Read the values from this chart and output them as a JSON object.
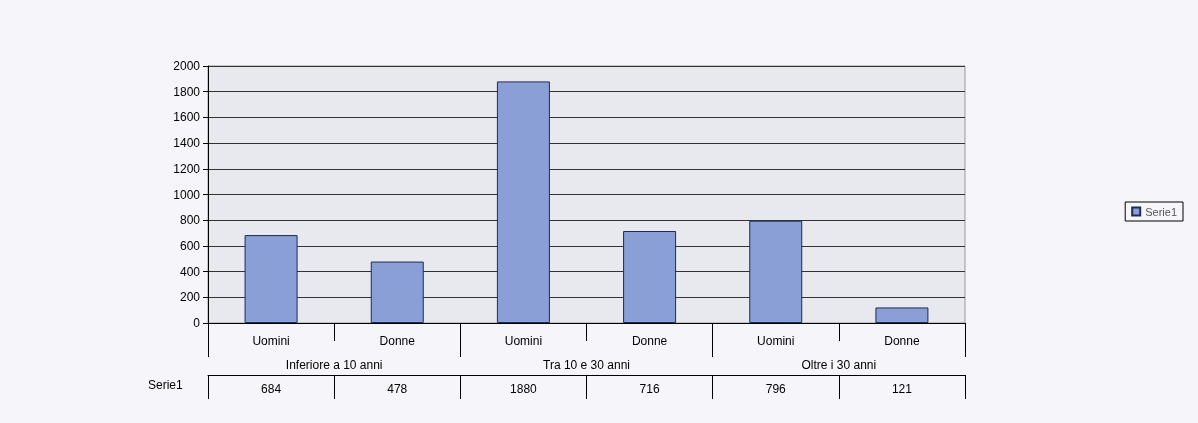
{
  "chart_data": {
    "type": "bar",
    "categories": [
      "Uomini",
      "Donne",
      "Uomini",
      "Donne",
      "Uomini",
      "Donne"
    ],
    "series": [
      {
        "name": "Serie1",
        "color": "#8a9fd6",
        "values": [
          684,
          478,
          1880,
          716,
          796,
          121
        ]
      }
    ],
    "annotations": [
      "Inferiore a 10 anni",
      "Tra 10 e 30 anni",
      "Oltre i 30 anni"
    ],
    "ylim": [
      0,
      2000
    ],
    "yticks": [
      0,
      200,
      400,
      600,
      800,
      1000,
      1200,
      1400,
      1600,
      1800,
      2000
    ],
    "grid": "y",
    "legend": "right",
    "data_labels": true
  }
}
